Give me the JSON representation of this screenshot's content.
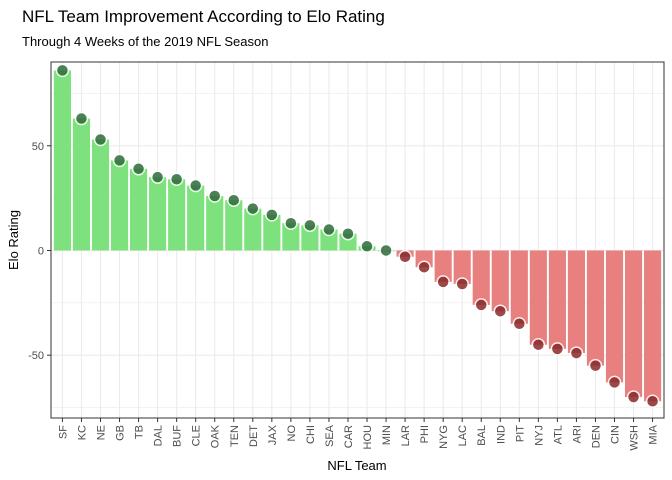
{
  "chart_data": {
    "type": "bar",
    "title": "NFL Team Improvement According to Elo Rating",
    "subtitle": "Through 4 Weeks of the 2019 NFL Season",
    "xlabel": "NFL Team",
    "ylabel": "Elo Rating",
    "ylim": [
      -80,
      90
    ],
    "yticks": [
      50,
      0,
      -50
    ],
    "grid": true,
    "legend": "none",
    "colors": {
      "positive": "#7de27d",
      "negative": "#e88080",
      "grid": "#ebebeb",
      "border": "#333333"
    },
    "categories": [
      "SF",
      "KC",
      "NE",
      "GB",
      "TB",
      "DAL",
      "BUF",
      "CLE",
      "OAK",
      "TEN",
      "DET",
      "JAX",
      "NO",
      "CHI",
      "SEA",
      "CAR",
      "HOU",
      "MIN",
      "LAR",
      "PHI",
      "NYG",
      "LAC",
      "BAL",
      "IND",
      "PIT",
      "NYJ",
      "ATL",
      "ARI",
      "DEN",
      "CIN",
      "WSH",
      "MIA"
    ],
    "values": [
      86,
      63,
      53,
      43,
      39,
      35,
      34,
      31,
      26,
      24,
      20,
      17,
      13,
      12,
      10,
      8,
      2,
      0,
      -3,
      -8,
      -15,
      -16,
      -26,
      -29,
      -35,
      -45,
      -47,
      -49,
      -55,
      -63,
      -70,
      -72
    ]
  }
}
